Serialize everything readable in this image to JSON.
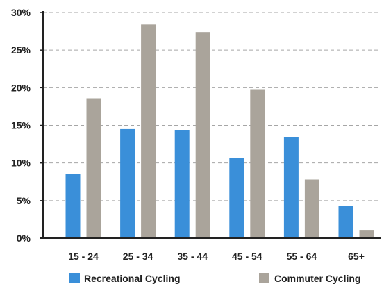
{
  "chart_data": {
    "type": "bar",
    "title": "",
    "xlabel": "",
    "ylabel": "",
    "categories": [
      "15 - 24",
      "25 - 34",
      "35 - 44",
      "45 - 54",
      "55 - 64",
      "65+"
    ],
    "series": [
      {
        "name": "Recreational Cycling",
        "values": [
          8.5,
          14.5,
          14.4,
          10.7,
          13.4,
          4.3
        ],
        "color": "#3a8fd9"
      },
      {
        "name": "Commuter Cycling",
        "values": [
          18.6,
          28.4,
          27.4,
          19.8,
          7.8,
          1.1
        ],
        "color": "#aaa49b"
      }
    ],
    "ylim": [
      0,
      30
    ],
    "yticks": [
      0,
      5,
      10,
      15,
      20,
      25,
      30
    ],
    "ytick_labels": [
      "0%",
      "5%",
      "10%",
      "15%",
      "20%",
      "25%",
      "30%"
    ],
    "grid": true,
    "legend": "bottom"
  }
}
